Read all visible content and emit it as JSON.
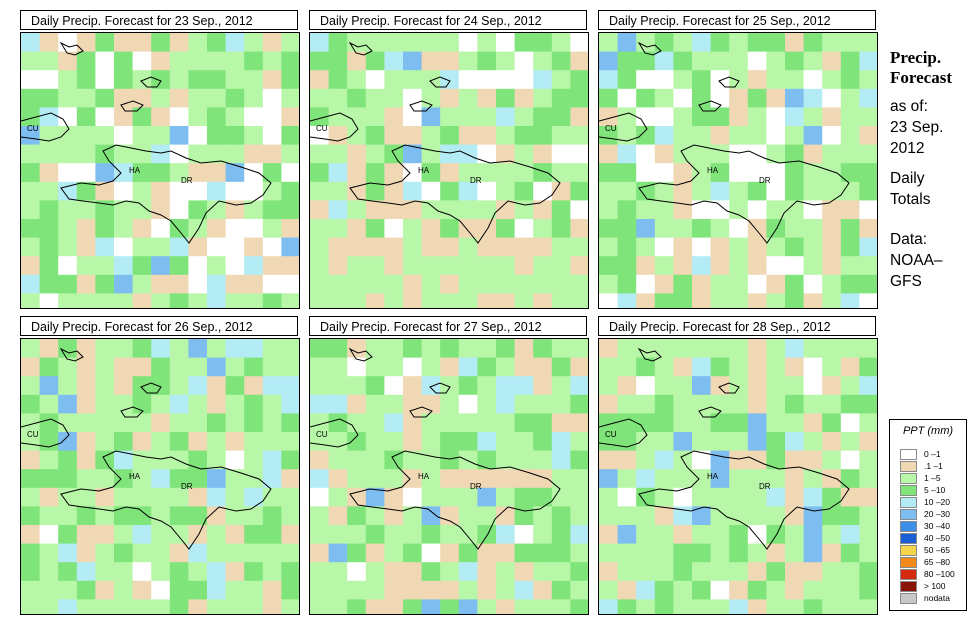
{
  "panels": [
    {
      "title": "Daily Precip. Forecast for  23 Sep., 2012",
      "seed": 11,
      "bias": 0
    },
    {
      "title": "Daily Precip. Forecast for  24 Sep., 2012",
      "seed": 23,
      "bias": 1
    },
    {
      "title": "Daily Precip. Forecast for  25 Sep., 2012",
      "seed": 37,
      "bias": 2
    },
    {
      "title": "Daily Precip. Forecast for  26 Sep., 2012",
      "seed": 51,
      "bias": 3
    },
    {
      "title": "Daily Precip. Forecast for  27 Sep., 2012",
      "seed": 67,
      "bias": 4
    },
    {
      "title": "Daily Precip. Forecast for  28 Sep., 2012",
      "seed": 83,
      "bias": 5
    }
  ],
  "map_labels": {
    "cu": "CU",
    "ha": "HA",
    "dr": "DR"
  },
  "side": {
    "title_line1": "Precip.",
    "title_line2": "Forecast",
    "asof": "as of:",
    "date1": "23 Sep.",
    "date2": "2012",
    "totals1": "Daily",
    "totals2": "Totals",
    "data1": "Data:",
    "data2": "NOAA–",
    "data3": "GFS"
  },
  "legend": {
    "title": "PPT (mm)",
    "items": [
      {
        "label": "0 –1",
        "color": "#ffffff"
      },
      {
        "label": ".1 –1",
        "color": "#f0d8b5"
      },
      {
        "label": "1 –5",
        "color": "#b8f7a8"
      },
      {
        "label": "5 –10",
        "color": "#7fe57a"
      },
      {
        "label": "10 –20",
        "color": "#b3ecf5"
      },
      {
        "label": "20 –30",
        "color": "#7dbdf0"
      },
      {
        "label": "30 –40",
        "color": "#3d8ee8"
      },
      {
        "label": "40 –50",
        "color": "#1a5ed4"
      },
      {
        "label": "50 –65",
        "color": "#f5d64a"
      },
      {
        "label": "65 –80",
        "color": "#f28a1a"
      },
      {
        "label": "80 –100",
        "color": "#d42a10"
      },
      {
        "label": "> 100",
        "color": "#8a1408"
      },
      {
        "label": "nodata",
        "color": "#c8c8c8"
      }
    ]
  }
}
